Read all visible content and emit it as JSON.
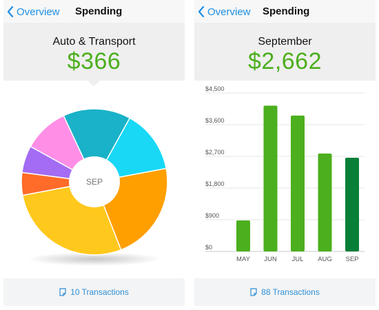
{
  "left": {
    "nav": {
      "back_label": "Overview",
      "title": "Spending"
    },
    "summary": {
      "label": "Auto & Transport",
      "amount": "$366"
    },
    "footer": {
      "transactions": "10 Transactions"
    }
  },
  "right": {
    "nav": {
      "back_label": "Overview",
      "title": "Spending"
    },
    "summary": {
      "label": "September",
      "amount": "$2,662"
    },
    "footer": {
      "transactions": "88 Transactions"
    }
  },
  "chart_data": [
    {
      "type": "pie",
      "title": "",
      "center_label": "SEP",
      "slices": [
        {
          "value": 15,
          "color": "#1ab2c8"
        },
        {
          "value": 14,
          "color": "#18d8f6"
        },
        {
          "value": 22,
          "color": "#ff9f00"
        },
        {
          "value": 28,
          "color": "#ffc81c"
        },
        {
          "value": 5,
          "color": "#ff6b28"
        },
        {
          "value": 6,
          "color": "#a36cf3"
        },
        {
          "value": 10,
          "color": "#ff8ee6"
        }
      ]
    },
    {
      "type": "bar",
      "title": "",
      "categories": [
        "MAY",
        "JUN",
        "JUL",
        "AUG",
        "SEP"
      ],
      "values": [
        880,
        4140,
        3860,
        2780,
        2662
      ],
      "bar_colors": [
        "#4caf1e",
        "#4caf1e",
        "#4caf1e",
        "#4caf1e",
        "#087f38"
      ],
      "ylim": [
        0,
        4500
      ],
      "yticks": [
        "$0",
        "$900",
        "$1,800",
        "$2,700",
        "$3,600",
        "$4,500"
      ],
      "grid": true
    }
  ]
}
